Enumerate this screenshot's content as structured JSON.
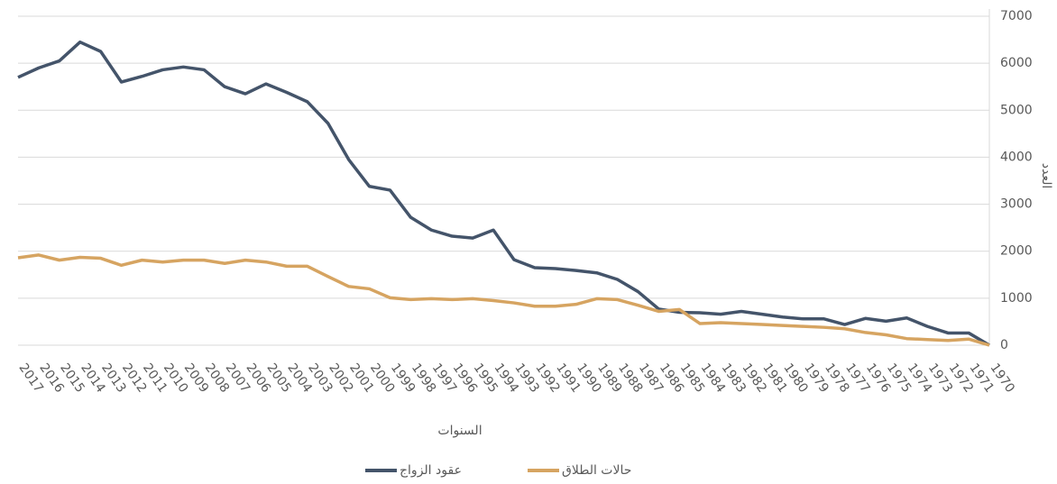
{
  "chart_data": {
    "type": "line",
    "x_label": "السنوات",
    "y_label": "العدد",
    "categories": [
      "2017",
      "2016",
      "2015",
      "2014",
      "2013",
      "2012",
      "2011",
      "2010",
      "2009",
      "2008",
      "2007",
      "2006",
      "2005",
      "2004",
      "2003",
      "2002",
      "2001",
      "2000",
      "1999",
      "1998",
      "1997",
      "1996",
      "1995",
      "1994",
      "1993",
      "1992",
      "1991",
      "1990",
      "1989",
      "1988",
      "1987",
      "1986",
      "1985",
      "1984",
      "1983",
      "1982",
      "1981",
      "1980",
      "1979",
      "1978",
      "1977",
      "1976",
      "1975",
      "1974",
      "1973",
      "1972",
      "1971",
      "1970"
    ],
    "series": [
      {
        "name": "عقود الزواج",
        "color": "#44546a",
        "values": [
          5700,
          5900,
          6050,
          6450,
          6250,
          5600,
          5720,
          5860,
          5920,
          5860,
          5500,
          5350,
          5560,
          5380,
          5180,
          4720,
          3950,
          3380,
          3300,
          2720,
          2450,
          2320,
          2280,
          2450,
          1820,
          1650,
          1630,
          1590,
          1540,
          1400,
          1140,
          770,
          700,
          690,
          660,
          720,
          660,
          600,
          560,
          560,
          440,
          570,
          510,
          580,
          400,
          260,
          260,
          0
        ]
      },
      {
        "name": "حالات الطلاق",
        "color": "#d6a461",
        "values": [
          1860,
          1920,
          1810,
          1870,
          1850,
          1700,
          1810,
          1770,
          1810,
          1810,
          1740,
          1810,
          1770,
          1680,
          1680,
          1460,
          1250,
          1200,
          1010,
          970,
          990,
          970,
          990,
          950,
          900,
          830,
          830,
          870,
          990,
          970,
          850,
          720,
          760,
          460,
          480,
          460,
          440,
          420,
          400,
          380,
          350,
          270,
          220,
          140,
          120,
          100,
          130,
          0
        ]
      }
    ],
    "ylim": [
      0,
      7000
    ],
    "yticks": [
      0,
      1000,
      2000,
      3000,
      4000,
      5000,
      6000,
      7000
    ],
    "grid": true
  }
}
